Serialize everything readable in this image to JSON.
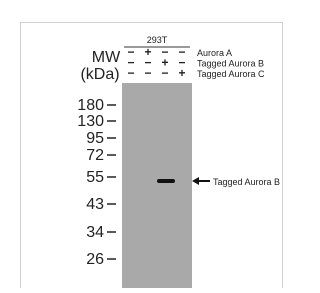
{
  "cell_line": "293T",
  "mw_label": "MW",
  "mw_unit": "(kDa)",
  "lane_rows": [
    {
      "signs": [
        "−",
        "+",
        "−",
        "−"
      ],
      "label": "Aurora A"
    },
    {
      "signs": [
        "−",
        "−",
        "+",
        "−"
      ],
      "label": "Tagged Aurora B"
    },
    {
      "signs": [
        "−",
        "−",
        "−",
        "+"
      ],
      "label": "Tagged Aurora C"
    }
  ],
  "markers": [
    "180",
    "130",
    "95",
    "72",
    "55",
    "43",
    "34",
    "26"
  ],
  "band_label": "Tagged Aurora B"
}
